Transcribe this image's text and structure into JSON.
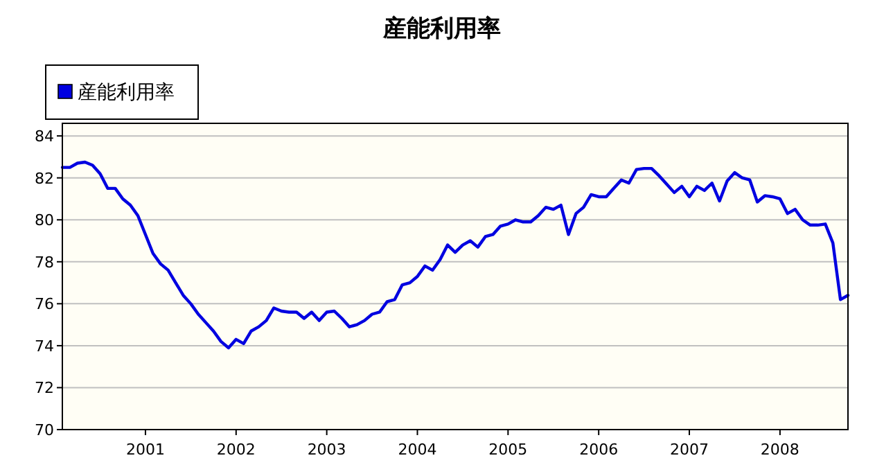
{
  "chart_data": {
    "type": "line",
    "title": "産能利用率",
    "x": [
      "2000-02",
      "2000-03",
      "2000-04",
      "2000-05",
      "2000-06",
      "2000-07",
      "2000-08",
      "2000-09",
      "2000-10",
      "2000-11",
      "2000-12",
      "2001-01",
      "2001-02",
      "2001-03",
      "2001-04",
      "2001-05",
      "2001-06",
      "2001-07",
      "2001-08",
      "2001-09",
      "2001-10",
      "2001-11",
      "2001-12",
      "2002-01",
      "2002-02",
      "2002-03",
      "2002-04",
      "2002-05",
      "2002-06",
      "2002-07",
      "2002-08",
      "2002-09",
      "2002-10",
      "2002-11",
      "2002-12",
      "2003-01",
      "2003-02",
      "2003-03",
      "2003-04",
      "2003-05",
      "2003-06",
      "2003-07",
      "2003-08",
      "2003-09",
      "2003-10",
      "2003-11",
      "2003-12",
      "2004-01",
      "2004-02",
      "2004-03",
      "2004-04",
      "2004-05",
      "2004-06",
      "2004-07",
      "2004-08",
      "2004-09",
      "2004-10",
      "2004-11",
      "2004-12",
      "2005-01",
      "2005-02",
      "2005-03",
      "2005-04",
      "2005-05",
      "2005-06",
      "2005-07",
      "2005-08",
      "2005-09",
      "2005-10",
      "2005-11",
      "2005-12",
      "2006-01",
      "2006-02",
      "2006-03",
      "2006-04",
      "2006-05",
      "2006-06",
      "2006-07",
      "2006-08",
      "2006-09",
      "2006-10",
      "2006-11",
      "2006-12",
      "2007-01",
      "2007-02",
      "2007-03",
      "2007-04",
      "2007-05",
      "2007-06",
      "2007-07",
      "2007-08",
      "2007-09",
      "2007-10",
      "2007-11",
      "2007-12",
      "2008-01",
      "2008-02",
      "2008-03",
      "2008-04",
      "2008-05",
      "2008-06",
      "2008-07",
      "2008-08",
      "2008-09",
      "2008-10"
    ],
    "series": [
      {
        "name": "産能利用率",
        "color": "#0000e0",
        "values": [
          82.5,
          82.5,
          82.7,
          82.75,
          82.6,
          82.2,
          81.5,
          81.5,
          81.0,
          80.7,
          80.2,
          79.3,
          78.4,
          77.9,
          77.6,
          77.0,
          76.4,
          76.0,
          75.5,
          75.1,
          74.7,
          74.2,
          73.9,
          74.3,
          74.1,
          74.7,
          74.9,
          75.2,
          75.8,
          75.65,
          75.6,
          75.6,
          75.3,
          75.6,
          75.2,
          75.6,
          75.65,
          75.3,
          74.9,
          75.0,
          75.2,
          75.5,
          75.6,
          76.1,
          76.2,
          76.9,
          77.0,
          77.3,
          77.8,
          77.6,
          78.1,
          78.8,
          78.45,
          78.8,
          79.0,
          78.7,
          79.2,
          79.3,
          79.7,
          79.8,
          80.0,
          79.9,
          79.9,
          80.2,
          80.6,
          80.5,
          80.7,
          79.3,
          80.3,
          80.6,
          81.2,
          81.1,
          81.1,
          81.5,
          81.9,
          81.75,
          82.4,
          82.45,
          82.45,
          82.1,
          81.7,
          81.3,
          81.6,
          81.1,
          81.6,
          81.4,
          81.75,
          80.9,
          81.85,
          82.25,
          82.0,
          81.9,
          80.85,
          81.15,
          81.1,
          81.0,
          80.3,
          80.5,
          80.0,
          79.75,
          79.75,
          79.8,
          78.9,
          76.2,
          76.4
        ]
      }
    ],
    "xlim": [
      "2000-02",
      "2008-10"
    ],
    "xticks": [
      "2001",
      "2002",
      "2003",
      "2004",
      "2005",
      "2006",
      "2007",
      "2008"
    ],
    "ylim": [
      70,
      84.6
    ],
    "yticks": [
      70,
      72,
      74,
      76,
      78,
      80,
      82,
      84
    ],
    "grid": "y",
    "legend": "top left",
    "marker": "none",
    "line_style": "solid"
  }
}
